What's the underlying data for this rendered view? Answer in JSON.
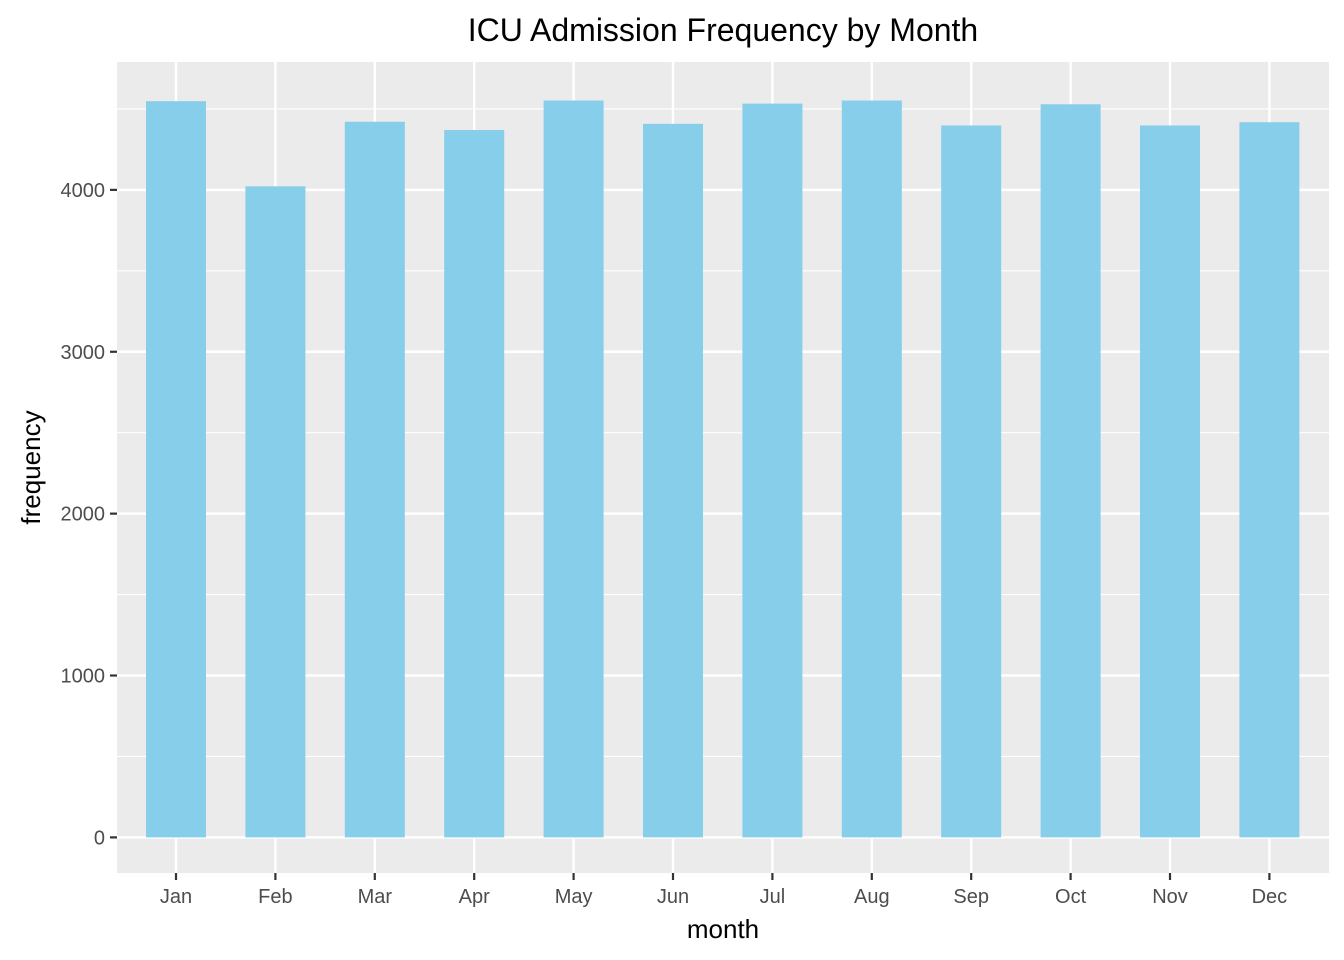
{
  "chart_data": {
    "type": "bar",
    "title": "ICU Admission Frequency by Month",
    "xlabel": "month",
    "ylabel": "frequency",
    "categories": [
      "Jan",
      "Feb",
      "Mar",
      "Apr",
      "May",
      "Jun",
      "Jul",
      "Aug",
      "Sep",
      "Oct",
      "Nov",
      "Dec"
    ],
    "values": [
      4548,
      4022,
      4421,
      4370,
      4552,
      4408,
      4533,
      4552,
      4398,
      4529,
      4398,
      4418
    ],
    "ylim": [
      -220,
      4790
    ],
    "yticks": [
      0,
      1000,
      2000,
      3000,
      4000
    ],
    "grid": true,
    "legend": "none",
    "colors": {
      "bar": "#87CEEB",
      "panel": "#EBEBEB",
      "grid": "#FFFFFF",
      "tick_text": "#4D4D4D",
      "tick_mark": "#333333"
    }
  }
}
